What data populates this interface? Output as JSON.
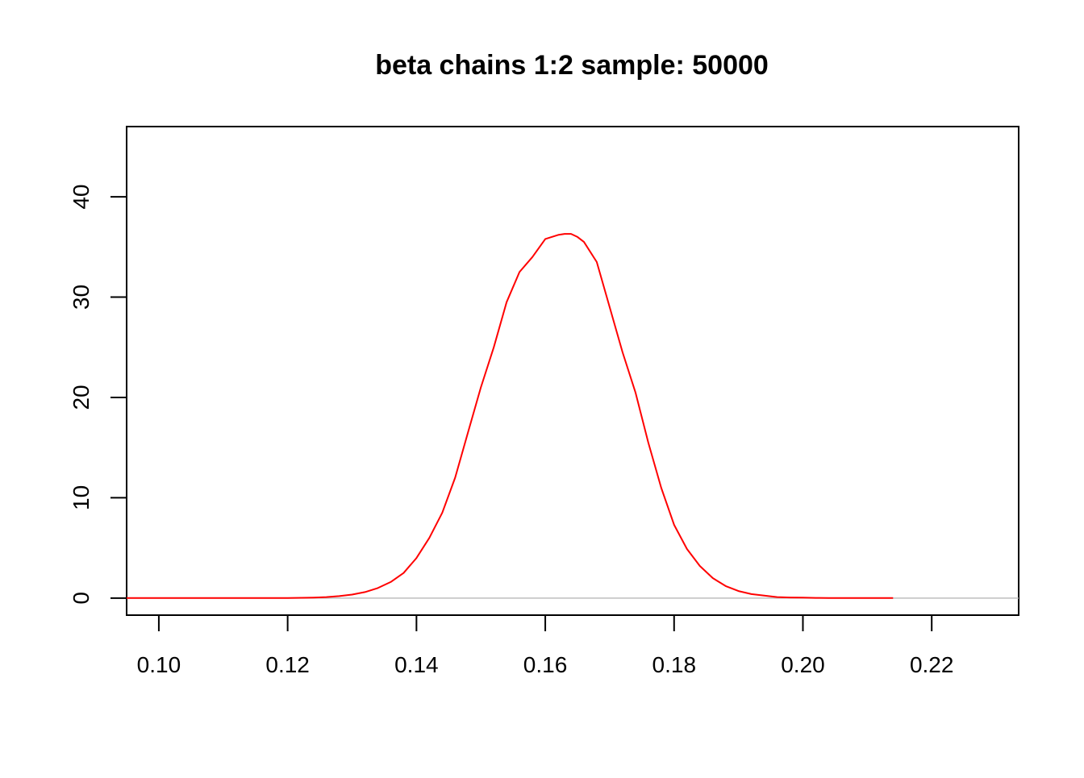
{
  "chart_data": {
    "type": "line",
    "title": "beta chains 1:2 sample: 50000",
    "xlabel": "",
    "ylabel": "",
    "xlim": [
      0.095,
      0.2335
    ],
    "ylim": [
      -1.7,
      47
    ],
    "x_ticks": [
      "0.10",
      "0.12",
      "0.14",
      "0.16",
      "0.18",
      "0.20",
      "0.22"
    ],
    "y_ticks": [
      "0",
      "10",
      "20",
      "30",
      "40"
    ],
    "grid": false,
    "legend": "none",
    "baseline": {
      "y": 0,
      "color": "#bebebe"
    },
    "series": [
      {
        "color": "#ff0000",
        "x": [
          0.095,
          0.1,
          0.11,
          0.12,
          0.124,
          0.126,
          0.128,
          0.13,
          0.132,
          0.134,
          0.136,
          0.138,
          0.14,
          0.142,
          0.144,
          0.146,
          0.148,
          0.15,
          0.152,
          0.154,
          0.156,
          0.158,
          0.16,
          0.162,
          0.163,
          0.164,
          0.165,
          0.166,
          0.168,
          0.17,
          0.172,
          0.174,
          0.176,
          0.178,
          0.18,
          0.182,
          0.184,
          0.186,
          0.188,
          0.19,
          0.192,
          0.194,
          0.196,
          0.198,
          0.2,
          0.202,
          0.204,
          0.206,
          0.208,
          0.21,
          0.212,
          0.214
        ],
        "y": [
          0,
          0,
          0,
          0,
          0.05,
          0.1,
          0.2,
          0.35,
          0.6,
          1.0,
          1.6,
          2.5,
          4.0,
          6.0,
          8.5,
          12,
          16.5,
          21,
          25,
          29.5,
          32.5,
          34,
          35.8,
          36.2,
          36.3,
          36.3,
          36.0,
          35.5,
          33.5,
          29,
          24.5,
          20.5,
          15.5,
          11,
          7.3,
          4.9,
          3.2,
          2.0,
          1.2,
          0.7,
          0.4,
          0.25,
          0.1,
          0.06,
          0.04,
          0.02,
          0.01,
          0.005,
          0.002,
          0.001,
          0,
          0
        ]
      }
    ]
  }
}
